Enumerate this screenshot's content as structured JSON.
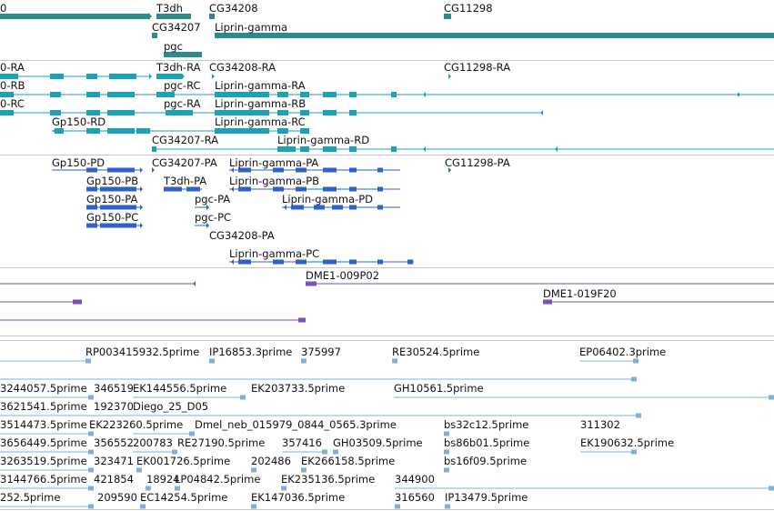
{
  "colors": {
    "gene": "#2e8b8b",
    "transcript": "#1aa3b8",
    "protein": "#2e62c8",
    "clone": "#7b4fb8",
    "est": "#7fb0dc",
    "separator": "#c9c9c9"
  },
  "tracks": {
    "genes": {
      "labels": {
        "g0": "0",
        "t3dh": "T3dh",
        "cg34208": "CG34208",
        "cg11298": "CG11298",
        "cg34207": "CG34207",
        "liprin": "Liprin-gamma",
        "pgc": "pgc"
      }
    },
    "transcripts": {
      "labels": {
        "ra0": "0-RA",
        "t3dh_ra": "T3dh-RA",
        "cg34208_ra": "CG34208-RA",
        "cg11298_ra": "CG11298-RA",
        "rb0": "0-RB",
        "pgc_rc": "pgc-RC",
        "liprin_ra": "Liprin-gamma-RA",
        "rc0": "0-RC",
        "pgc_ra": "pgc-RA",
        "liprin_rb": "Liprin-gamma-RB",
        "gp150_rd": "Gp150-RD",
        "liprin_rc": "Liprin-gamma-RC",
        "cg34207_ra": "CG34207-RA",
        "liprin_rd": "Liprin-gamma-RD"
      }
    },
    "proteins": {
      "labels": {
        "gp150_pd": "Gp150-PD",
        "cg34207_pa": "CG34207-PA",
        "liprin_pa": "Liprin-gamma-PA",
        "cg11298_pa": "CG11298-PA",
        "gp150_pb": "Gp150-PB",
        "t3dh_pa": "T3dh-PA",
        "liprin_pb": "Liprin-gamma-PB",
        "gp150_pa": "Gp150-PA",
        "pgc_pa": "pgc-PA",
        "liprin_pd": "Liprin-gamma-PD",
        "gp150_pc": "Gp150-PC",
        "pgc_pc": "pgc-PC",
        "cg34208_pa": "CG34208-PA",
        "liprin_pc": "Liprin-gamma-PC"
      }
    },
    "clones": {
      "labels": {
        "dme1_009p02": "DME1-009P02",
        "dme1_019f20": "DME1-019F20"
      }
    },
    "ests": {
      "rows": [
        [
          "RP003415932.5prime",
          "IP16853.3prime",
          "375997",
          "RE30524.5prime",
          "EP06402.3prime"
        ],
        [
          "3244057.5prime",
          "346519",
          "EK144556.5prime",
          "EK203733.5prime",
          "GH10561.5prime"
        ],
        [
          "3621541.5prime",
          "192370",
          "Diego_25_D05"
        ],
        [
          "3514473.5prime",
          "EK223260.5prime",
          "Dmel_neb_015979_0844_0565.3prime",
          "bs32c12.5prime",
          "311302"
        ],
        [
          "3656449.5prime",
          "356552",
          "200783",
          "RE27190.5prime",
          "357416",
          "GH03509.5prime",
          "bs86b01.5prime",
          "EK190632.5prime"
        ],
        [
          "3263519.5prime",
          "323471",
          "EK001726.5prime",
          "202486",
          "EK266158.5prime",
          "bs16f09.5prime"
        ],
        [
          "3144766.5prime",
          "421854",
          "18924",
          "LP04842.5prime",
          "EK235136.5prime",
          "344900"
        ],
        [
          "252.5prime",
          "209590",
          "EC14254.5prime",
          "EK147036.5prime",
          "316560",
          "IP13479.5prime"
        ]
      ]
    }
  }
}
